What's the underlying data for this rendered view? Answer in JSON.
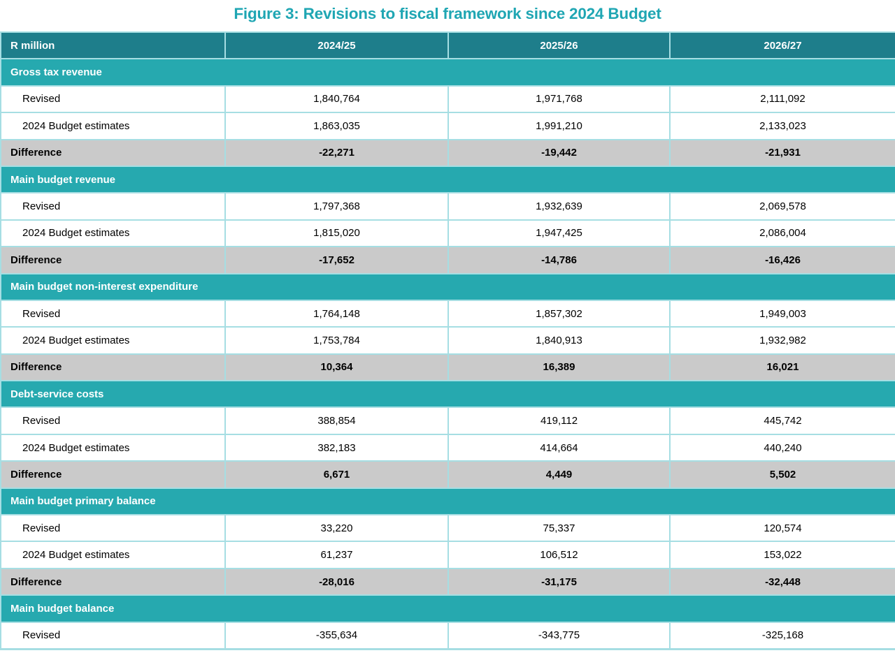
{
  "title": "Figure 3: Revisions to fiscal framework since 2024 Budget",
  "colors": {
    "title": "#1FA6B3",
    "header_bg": "#1E7E8B",
    "header_divider": "#3C98A4",
    "section_bg": "#26A9AF",
    "difference_bg": "#CACACA",
    "row_border": "#A6DEE3"
  },
  "table": {
    "columns": [
      "R million",
      "2024/25",
      "2025/26",
      "2026/27"
    ],
    "row_labels": {
      "revised": "Revised",
      "estimates": "2024 Budget estimates",
      "difference": "Difference"
    },
    "sections": [
      {
        "name": "Gross tax revenue",
        "revised": [
          "1,840,764",
          "1,971,768",
          "2,111,092"
        ],
        "estimates": [
          "1,863,035",
          "1,991,210",
          "2,133,023"
        ],
        "difference": [
          "-22,271",
          "-19,442",
          "-21,931"
        ]
      },
      {
        "name": "Main budget revenue",
        "revised": [
          "1,797,368",
          "1,932,639",
          "2,069,578"
        ],
        "estimates": [
          "1,815,020",
          "1,947,425",
          "2,086,004"
        ],
        "difference": [
          "-17,652",
          "-14,786",
          "-16,426"
        ]
      },
      {
        "name": "Main budget non-interest expenditure",
        "revised": [
          "1,764,148",
          "1,857,302",
          "1,949,003"
        ],
        "estimates": [
          "1,753,784",
          "1,840,913",
          "1,932,982"
        ],
        "difference": [
          "10,364",
          "16,389",
          "16,021"
        ]
      },
      {
        "name": "Debt-service costs",
        "revised": [
          "388,854",
          "419,112",
          "445,742"
        ],
        "estimates": [
          "382,183",
          "414,664",
          "440,240"
        ],
        "difference": [
          "6,671",
          "4,449",
          "5,502"
        ]
      },
      {
        "name": "Main budget primary balance",
        "revised": [
          "33,220",
          "75,337",
          "120,574"
        ],
        "estimates": [
          "61,237",
          "106,512",
          "153,022"
        ],
        "difference": [
          "-28,016",
          "-31,175",
          "-32,448"
        ]
      },
      {
        "name": "Main budget balance",
        "revised": [
          "-355,634",
          "-343,775",
          "-325,168"
        ]
      }
    ]
  }
}
